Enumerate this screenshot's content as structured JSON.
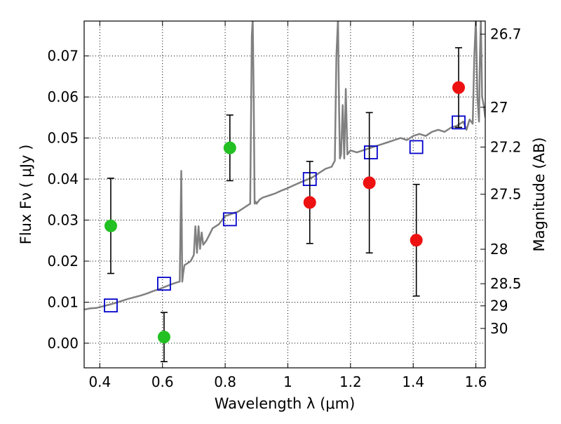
{
  "chart_data": {
    "type": "scatter",
    "xlabel": "Wavelength  λ (μm)",
    "ylabel": "Flux  Fν  ( μJy )",
    "y2label": "Magnitude (AB)",
    "xlim": [
      0.35,
      1.63
    ],
    "ylim": [
      -0.006,
      0.0785
    ],
    "grid": true,
    "x_ticks": [
      "0.4",
      "0.6",
      "0.8",
      "1",
      "1.2",
      "1.4",
      "1.6"
    ],
    "y_ticks": [
      "0.00",
      "0.01",
      "0.02",
      "0.03",
      "0.04",
      "0.05",
      "0.06",
      "0.07"
    ],
    "y2_ticks": [
      {
        "label": "26.7",
        "flux": 0.0753
      },
      {
        "label": "27",
        "flux": 0.0575
      },
      {
        "label": "27.2",
        "flux": 0.0478
      },
      {
        "label": "27.5",
        "flux": 0.0363
      },
      {
        "label": "28",
        "flux": 0.0229
      },
      {
        "label": "28.5",
        "flux": 0.0145
      },
      {
        "label": "29",
        "flux": 0.0091
      },
      {
        "label": "30",
        "flux": 0.0036
      }
    ],
    "series": [
      {
        "type": "line",
        "color": "#808080",
        "x": [
          0.35,
          0.37,
          0.39,
          0.41,
          0.43,
          0.45,
          0.47,
          0.49,
          0.51,
          0.53,
          0.55,
          0.57,
          0.59,
          0.61,
          0.63,
          0.645,
          0.655,
          0.66,
          0.663,
          0.666,
          0.67,
          0.68,
          0.69,
          0.7,
          0.705,
          0.71,
          0.715,
          0.72,
          0.725,
          0.73,
          0.74,
          0.75,
          0.76,
          0.77,
          0.78,
          0.79,
          0.8,
          0.81,
          0.82,
          0.83,
          0.84,
          0.85,
          0.86,
          0.87,
          0.88,
          0.885,
          0.888,
          0.891,
          0.894,
          0.897,
          0.9,
          0.91,
          0.92,
          0.94,
          0.96,
          0.98,
          1.0,
          1.02,
          1.04,
          1.06,
          1.08,
          1.1,
          1.12,
          1.14,
          1.15,
          1.155,
          1.16,
          1.163,
          1.166,
          1.17,
          1.175,
          1.18,
          1.185,
          1.19,
          1.2,
          1.22,
          1.24,
          1.26,
          1.28,
          1.3,
          1.32,
          1.34,
          1.36,
          1.38,
          1.4,
          1.42,
          1.44,
          1.46,
          1.48,
          1.5,
          1.52,
          1.54,
          1.56,
          1.57,
          1.58,
          1.59,
          1.595,
          1.6,
          1.605,
          1.61,
          1.613,
          1.616,
          1.62,
          1.625,
          1.63
        ],
        "y": [
          0.0082,
          0.0085,
          0.0086,
          0.009,
          0.0094,
          0.0098,
          0.0103,
          0.0108,
          0.0112,
          0.0116,
          0.0121,
          0.0127,
          0.0132,
          0.0138,
          0.0144,
          0.0148,
          0.015,
          0.042,
          0.015,
          0.017,
          0.019,
          0.0195,
          0.02,
          0.0215,
          0.0285,
          0.022,
          0.0285,
          0.023,
          0.027,
          0.024,
          0.025,
          0.0265,
          0.028,
          0.0285,
          0.029,
          0.03,
          0.031,
          0.0312,
          0.0315,
          0.0318,
          0.032,
          0.0325,
          0.033,
          0.0335,
          0.034,
          0.075,
          0.079,
          0.06,
          0.034,
          0.0345,
          0.034,
          0.035,
          0.0355,
          0.036,
          0.0365,
          0.0372,
          0.0378,
          0.0385,
          0.0392,
          0.0398,
          0.0405,
          0.0415,
          0.0425,
          0.043,
          0.0445,
          0.07,
          0.079,
          0.06,
          0.045,
          0.046,
          0.058,
          0.045,
          0.062,
          0.046,
          0.047,
          0.0465,
          0.047,
          0.0475,
          0.048,
          0.0485,
          0.049,
          0.0495,
          0.05,
          0.0495,
          0.0505,
          0.051,
          0.0505,
          0.0515,
          0.052,
          0.0515,
          0.0525,
          0.053,
          0.054,
          0.052,
          0.0545,
          0.0535,
          0.07,
          0.079,
          0.06,
          0.054,
          0.07,
          0.079,
          0.06,
          0.058,
          0.055
        ]
      },
      {
        "type": "scatter",
        "marker": "square",
        "color": "#0000cc",
        "x": [
          0.435,
          0.605,
          0.815,
          1.07,
          1.265,
          1.41,
          1.545
        ],
        "y": [
          0.0092,
          0.0145,
          0.0302,
          0.04,
          0.0465,
          0.0478,
          0.0538
        ]
      },
      {
        "type": "scatter",
        "marker": "circle",
        "color": "#22c022",
        "x": [
          0.435,
          0.605,
          0.815
        ],
        "y": [
          0.0286,
          0.0015,
          0.0476
        ],
        "yerr": [
          0.0116,
          0.006,
          0.008
        ]
      },
      {
        "type": "scatter",
        "marker": "circle",
        "color": "#ee1111",
        "x": [
          1.07,
          1.26,
          1.41,
          1.545
        ],
        "y": [
          0.0343,
          0.0391,
          0.0251,
          0.0623
        ],
        "yerr": [
          0.01,
          0.0171,
          0.0136,
          0.0097
        ]
      }
    ]
  }
}
